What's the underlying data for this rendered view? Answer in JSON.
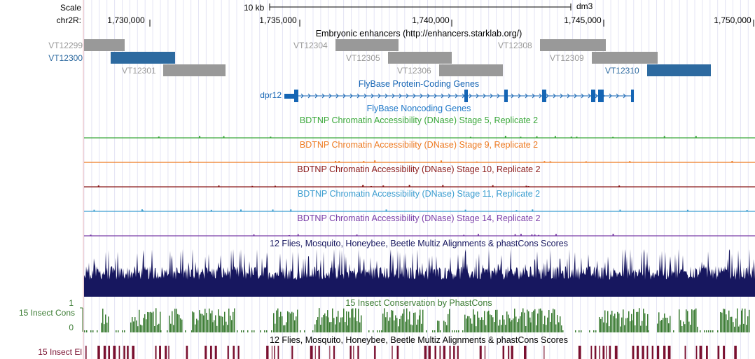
{
  "ruler": {
    "scale_label": "Scale",
    "chrom_label": "chr2R:",
    "scale_bar_text": "10 kb",
    "assembly": "dm3",
    "ticks": [
      "1,730,000",
      "1,735,000",
      "1,740,000",
      "1,745,000",
      "1,750,000"
    ]
  },
  "tracks": {
    "enhancers": {
      "title": "Embryonic enhancers (http://enhancers.starklab.org/)",
      "items": [
        {
          "name": "VT12299",
          "color": "#999999"
        },
        {
          "name": "VT12300",
          "color": "#2d6aa0"
        },
        {
          "name": "VT12301",
          "color": "#999999"
        },
        {
          "name": "VT12304",
          "color": "#999999"
        },
        {
          "name": "VT12305",
          "color": "#999999"
        },
        {
          "name": "VT12306",
          "color": "#999999"
        },
        {
          "name": "VT12308",
          "color": "#999999"
        },
        {
          "name": "VT12309",
          "color": "#999999"
        },
        {
          "name": "VT12310",
          "color": "#2d6aa0"
        }
      ]
    },
    "protein_coding": {
      "title": "FlyBase Protein-Coding Genes",
      "gene": "dpr12",
      "color": "#1565b4"
    },
    "noncoding": {
      "title": "FlyBase Noncoding Genes",
      "color": "#1e78c8"
    },
    "dnase": [
      {
        "title": "BDTNP Chromatin Accessibility (DNase) Stage 5, Replicate 2",
        "color": "#3aa83a"
      },
      {
        "title": "BDTNP Chromatin Accessibility (DNase) Stage 9, Replicate 2",
        "color": "#ee7b22"
      },
      {
        "title": "BDTNP Chromatin Accessibility (DNase) Stage 10, Replicate 2",
        "color": "#8b1a1a"
      },
      {
        "title": "BDTNP Chromatin Accessibility (DNase) Stage 11, Replicate 2",
        "color": "#3c9ed0"
      },
      {
        "title": "BDTNP Chromatin Accessibility (DNase) Stage 14, Replicate 2",
        "color": "#7a3ea8"
      }
    ],
    "multiz": {
      "title": "12 Flies, Mosquito, Honeybee, Beetle Multiz Alignments & phastCons Scores",
      "color": "#17175f"
    },
    "phastcons": {
      "title": "15 Insect Conservation by PhastCons",
      "left_label": "15 Insect Cons",
      "axis_max": "1",
      "axis_min": "0",
      "color": "#3b7c33"
    },
    "elements": {
      "title": "12 Flies, Mosquito, Honeybee, Beetle Multiz Alignments & phastCons Scores",
      "left_label": "15 Insect El",
      "color": "#7a1030"
    }
  }
}
